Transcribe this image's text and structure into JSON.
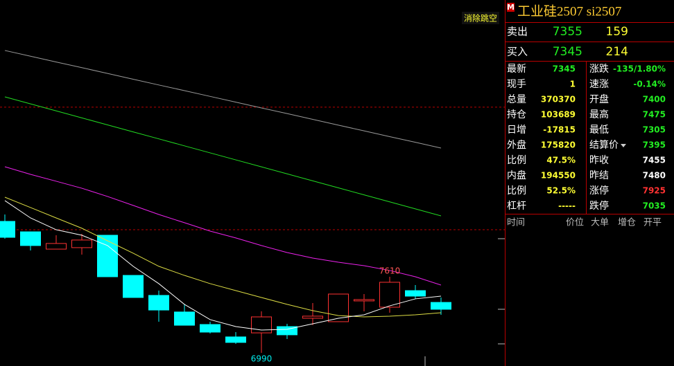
{
  "chart_data": {
    "type": "candlestick",
    "ylim": [
      6883,
      9864
    ],
    "candles": {
      "open": [
        8061,
        7976,
        7835,
        7847,
        7948,
        7621,
        7458,
        7323,
        7221,
        7120,
        7153,
        7204,
        7272,
        7244,
        7413,
        7362,
        7497,
        7401
      ],
      "high": [
        8117,
        7976,
        7948,
        7959,
        7948,
        7621,
        7497,
        7385,
        7244,
        7159,
        7328,
        7227,
        7396,
        7469,
        7469,
        7610,
        7542,
        7441
      ],
      "low": [
        7920,
        7824,
        7835,
        7790,
        7610,
        7441,
        7244,
        7215,
        7148,
        7063,
        6990,
        7103,
        7216,
        7244,
        7328,
        7317,
        7430,
        7300
      ],
      "close": [
        7931,
        7864,
        7881,
        7909,
        7610,
        7441,
        7339,
        7215,
        7159,
        7075,
        7283,
        7137,
        7289,
        7469,
        7424,
        7565,
        7452,
        7345
      ],
      "up_color": "#ff3232",
      "down_color": "#00ffff"
    },
    "series": [
      {
        "color": "#9a9a9a",
        "values": [
          9453,
          9406,
          9359,
          9313,
          9266,
          9219,
          9172,
          9126,
          9079,
          9032,
          8985,
          8939,
          8892,
          8845,
          8798,
          8751,
          8705,
          8658
        ]
      },
      {
        "color": "#22dd22",
        "values": [
          9075,
          9018,
          8961,
          8904,
          8847,
          8790,
          8733,
          8676,
          8619,
          8562,
          8505,
          8448,
          8391,
          8334,
          8277,
          8220,
          8163,
          8106
        ]
      },
      {
        "color": "#ee22ee",
        "values": [
          8506,
          8444,
          8388,
          8331,
          8264,
          8191,
          8117,
          8050,
          7982,
          7926,
          7864,
          7807,
          7762,
          7728,
          7700,
          7661,
          7610,
          7542
        ]
      },
      {
        "color": "#dddd44",
        "values": [
          8258,
          8174,
          8089,
          8005,
          7903,
          7802,
          7695,
          7621,
          7554,
          7497,
          7441,
          7385,
          7334,
          7294,
          7283,
          7289,
          7300,
          7317
        ]
      },
      {
        "color": "#ffffff",
        "values": [
          8230,
          8089,
          7993,
          7948,
          7864,
          7695,
          7554,
          7385,
          7261,
          7204,
          7176,
          7182,
          7227,
          7272,
          7300,
          7373,
          7430,
          7452
        ]
      }
    ],
    "dashed_levels": [
      8991,
      7993
    ],
    "high_label": 7610,
    "high_label_index": 15,
    "low_label": 6990,
    "low_label_index": 10,
    "button": "消除跳空"
  },
  "quote": {
    "badge": "M",
    "title": "工业硅2507  si2507",
    "ask": {
      "label": "卖出",
      "price": "7355",
      "volume": "159"
    },
    "bid": {
      "label": "买入",
      "price": "7345",
      "volume": "214"
    },
    "left": [
      {
        "label": "最新",
        "value": "7345",
        "color": "#22ee22"
      },
      {
        "label": "现手",
        "value": "1",
        "color": "#ffff33"
      },
      {
        "label": "总量",
        "value": "370370",
        "color": "#ffff33"
      },
      {
        "label": "持仓",
        "value": "103689",
        "color": "#ffff33"
      },
      {
        "label": "日增",
        "value": "-17815",
        "color": "#ffff33"
      },
      {
        "label": "外盘",
        "value": "175820",
        "color": "#ffff33"
      },
      {
        "label": "比例",
        "value": "47.5%",
        "color": "#ffff33"
      },
      {
        "label": "内盘",
        "value": "194550",
        "color": "#ffff33"
      },
      {
        "label": "比例",
        "value": "52.5%",
        "color": "#ffff33"
      },
      {
        "label": "杠杆",
        "value": "-----",
        "color": "#ffff33"
      }
    ],
    "right": [
      {
        "label": "涨跌",
        "value": "-135/1.80%",
        "color": "#22ee22"
      },
      {
        "label": "速涨",
        "value": "-0.14%",
        "color": "#22ee22"
      },
      {
        "label": "开盘",
        "value": "7400",
        "color": "#22ee22"
      },
      {
        "label": "最高",
        "value": "7475",
        "color": "#22ee22"
      },
      {
        "label": "最低",
        "value": "7305",
        "color": "#22ee22"
      },
      {
        "label": "结算价",
        "value": "7395",
        "color": "#22ee22"
      },
      {
        "label": "昨收",
        "value": "7455",
        "color": "#ffffff"
      },
      {
        "label": "昨结",
        "value": "7480",
        "color": "#ffffff"
      },
      {
        "label": "涨停",
        "value": "7925",
        "color": "#ff3232"
      },
      {
        "label": "跌停",
        "value": "7035",
        "color": "#22ee22"
      }
    ],
    "trades_header": [
      "时间",
      "价位",
      "大单",
      "增仓",
      "开平"
    ]
  }
}
